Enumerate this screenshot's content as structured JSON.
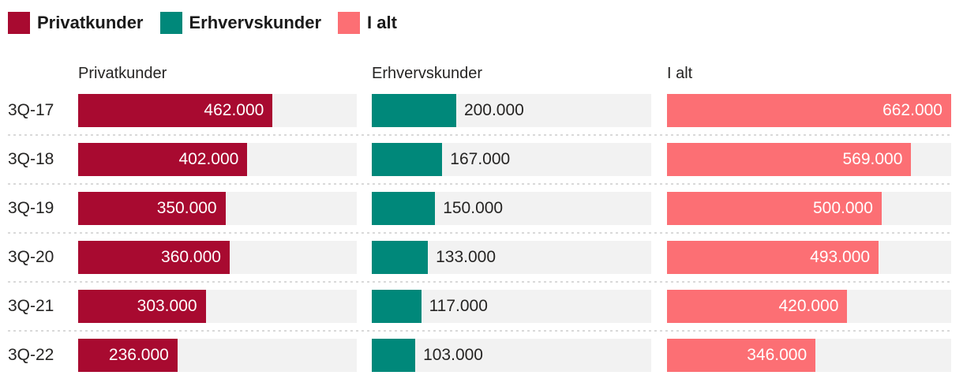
{
  "legend": {
    "position": "top-left",
    "items": [
      {
        "label": "Privatkunder",
        "color": "#a80a30"
      },
      {
        "label": "Erhvervskunder",
        "color": "#00887a"
      },
      {
        "label": "I alt",
        "color": "#fc6f74"
      }
    ]
  },
  "colors": {
    "track": "#f2f2f2",
    "separator_dots": "#d9d9d9",
    "text_dark": "#252423",
    "value_on_bar": "#ffffff"
  },
  "chart_data": {
    "type": "bar",
    "orientation": "horizontal",
    "title": "",
    "column_headers": [
      "Privatkunder",
      "Erhvervskunder",
      "I alt"
    ],
    "categories": [
      "3Q-17",
      "3Q-18",
      "3Q-19",
      "3Q-20",
      "3Q-21",
      "3Q-22"
    ],
    "series": [
      {
        "name": "Privatkunder",
        "color": "#a80a30",
        "values": [
          462000,
          402000,
          350000,
          360000,
          303000,
          236000
        ],
        "labels": [
          "462.000",
          "402.000",
          "350.000",
          "360.000",
          "303.000",
          "236.000"
        ],
        "label_position": "inside-end"
      },
      {
        "name": "Erhvervskunder",
        "color": "#00887a",
        "values": [
          200000,
          167000,
          150000,
          133000,
          117000,
          103000
        ],
        "labels": [
          "200.000",
          "167.000",
          "150.000",
          "133.000",
          "117.000",
          "103.000"
        ],
        "label_position": "outside-end"
      },
      {
        "name": "I alt",
        "color": "#fc6f74",
        "values": [
          662000,
          569000,
          500000,
          493000,
          420000,
          346000
        ],
        "labels": [
          "662.000",
          "569.000",
          "500.000",
          "493.000",
          "420.000",
          "346.000"
        ],
        "label_position": "inside-end"
      }
    ],
    "xlim": [
      0,
      662000
    ],
    "shared_scale": true,
    "grid": false,
    "value_format": "#.000 (da-DK thousands separator)",
    "legend_position": "top"
  }
}
